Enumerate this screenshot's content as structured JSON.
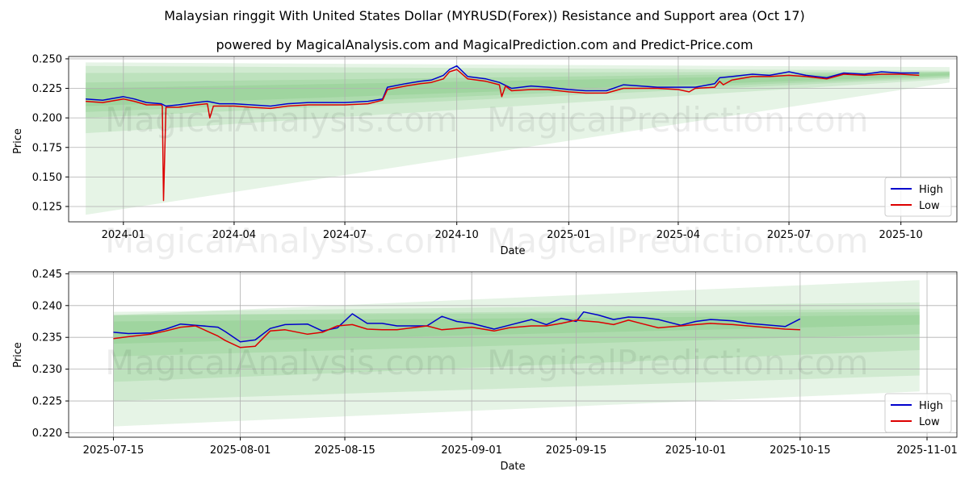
{
  "titles": {
    "main": "Malaysian ringgit With United States Dollar (MYRUSD(Forex)) Resistance and Support area (Oct 17)",
    "sub": "powered by MagicalAnalysis.com and MagicalPrediction.com and Predict-Price.com"
  },
  "watermarks": [
    "MagicalAnalysis.com",
    "MagicalPrediction.com"
  ],
  "colors": {
    "high": "#0000cc",
    "low": "#dd0000",
    "band": "#4caf50",
    "grid": "#b0b0b0"
  },
  "chart_data": [
    {
      "type": "line",
      "xlabel": "Date",
      "ylabel": "Price",
      "xlim": [
        "2023-11-17",
        "2025-11-16"
      ],
      "ylim": [
        0.112,
        0.252
      ],
      "xticks": [
        {
          "value": "2024-01-01",
          "label": "2024-01"
        },
        {
          "value": "2024-04-01",
          "label": "2024-04"
        },
        {
          "value": "2024-07-01",
          "label": "2024-07"
        },
        {
          "value": "2024-10-01",
          "label": "2024-10"
        },
        {
          "value": "2025-01-01",
          "label": "2025-01"
        },
        {
          "value": "2025-04-01",
          "label": "2025-04"
        },
        {
          "value": "2025-07-01",
          "label": "2025-07"
        },
        {
          "value": "2025-10-01",
          "label": "2025-10"
        }
      ],
      "yticks": [
        0.125,
        0.15,
        0.175,
        0.2,
        0.225,
        0.25
      ],
      "ytick_labels": [
        "0.125",
        "0.150",
        "0.175",
        "0.200",
        "0.225",
        "0.250"
      ],
      "grid": true,
      "legend_position": "bottom-right",
      "bands": [
        {
          "x": [
            "2023-12-01",
            "2025-11-10"
          ],
          "top": [
            0.247,
            0.243
          ],
          "bottom": [
            0.118,
            0.23
          ]
        },
        {
          "x": [
            "2023-12-01",
            "2025-11-10"
          ],
          "top": [
            0.244,
            0.24
          ],
          "bottom": [
            0.187,
            0.233
          ]
        },
        {
          "x": [
            "2023-12-01",
            "2025-11-10"
          ],
          "top": [
            0.238,
            0.239
          ],
          "bottom": [
            0.2,
            0.234
          ]
        },
        {
          "x": [
            "2023-12-01",
            "2025-11-10"
          ],
          "top": [
            0.23,
            0.239
          ],
          "bottom": [
            0.205,
            0.235
          ]
        },
        {
          "x": [
            "2023-12-01",
            "2025-11-10"
          ],
          "top": [
            0.225,
            0.238
          ],
          "bottom": [
            0.21,
            0.236
          ]
        }
      ],
      "series": [
        {
          "name": "High",
          "x": [
            "2023-12-01",
            "2023-12-15",
            "2024-01-01",
            "2024-01-10",
            "2024-01-20",
            "2024-02-01",
            "2024-02-05",
            "2024-02-15",
            "2024-03-01",
            "2024-03-10",
            "2024-03-20",
            "2024-04-01",
            "2024-04-15",
            "2024-05-01",
            "2024-05-15",
            "2024-06-01",
            "2024-06-15",
            "2024-07-01",
            "2024-07-20",
            "2024-08-01",
            "2024-08-05",
            "2024-08-20",
            "2024-09-01",
            "2024-09-10",
            "2024-09-20",
            "2024-09-25",
            "2024-10-01",
            "2024-10-10",
            "2024-10-25",
            "2024-11-05",
            "2024-11-15",
            "2024-12-01",
            "2024-12-15",
            "2025-01-01",
            "2025-01-15",
            "2025-02-01",
            "2025-02-15",
            "2025-03-01",
            "2025-03-15",
            "2025-04-01",
            "2025-04-15",
            "2025-05-01",
            "2025-05-05",
            "2025-05-15",
            "2025-06-01",
            "2025-06-15",
            "2025-07-01",
            "2025-07-15",
            "2025-08-01",
            "2025-08-15",
            "2025-09-01",
            "2025-09-15",
            "2025-10-01",
            "2025-10-16"
          ],
          "values": [
            0.216,
            0.215,
            0.218,
            0.216,
            0.213,
            0.212,
            0.21,
            0.211,
            0.213,
            0.214,
            0.212,
            0.212,
            0.211,
            0.21,
            0.212,
            0.213,
            0.213,
            0.213,
            0.214,
            0.216,
            0.226,
            0.229,
            0.231,
            0.232,
            0.236,
            0.241,
            0.244,
            0.235,
            0.233,
            0.23,
            0.225,
            0.227,
            0.226,
            0.224,
            0.223,
            0.223,
            0.228,
            0.227,
            0.226,
            0.226,
            0.226,
            0.229,
            0.234,
            0.235,
            0.237,
            0.236,
            0.239,
            0.236,
            0.234,
            0.238,
            0.237,
            0.239,
            0.238,
            0.238
          ]
        },
        {
          "name": "Low",
          "x": [
            "2023-12-01",
            "2023-12-15",
            "2024-01-01",
            "2024-01-10",
            "2024-01-20",
            "2024-02-01",
            "2024-02-02",
            "2024-02-03",
            "2024-02-05",
            "2024-02-15",
            "2024-03-01",
            "2024-03-10",
            "2024-03-12",
            "2024-03-15",
            "2024-03-20",
            "2024-04-01",
            "2024-04-15",
            "2024-05-01",
            "2024-05-15",
            "2024-06-01",
            "2024-06-15",
            "2024-07-01",
            "2024-07-20",
            "2024-08-01",
            "2024-08-05",
            "2024-08-20",
            "2024-09-01",
            "2024-09-10",
            "2024-09-20",
            "2024-09-25",
            "2024-10-01",
            "2024-10-10",
            "2024-10-25",
            "2024-11-05",
            "2024-11-07",
            "2024-11-10",
            "2024-11-15",
            "2024-12-01",
            "2024-12-15",
            "2025-01-01",
            "2025-01-15",
            "2025-02-01",
            "2025-02-15",
            "2025-03-01",
            "2025-03-15",
            "2025-04-01",
            "2025-04-10",
            "2025-04-15",
            "2025-05-01",
            "2025-05-05",
            "2025-05-08",
            "2025-05-15",
            "2025-06-01",
            "2025-06-15",
            "2025-07-01",
            "2025-07-15",
            "2025-08-01",
            "2025-08-15",
            "2025-09-01",
            "2025-09-15",
            "2025-10-01",
            "2025-10-16"
          ],
          "values": [
            0.214,
            0.213,
            0.216,
            0.214,
            0.211,
            0.211,
            0.21,
            0.13,
            0.209,
            0.209,
            0.211,
            0.212,
            0.2,
            0.21,
            0.21,
            0.21,
            0.209,
            0.208,
            0.21,
            0.211,
            0.211,
            0.211,
            0.212,
            0.215,
            0.224,
            0.227,
            0.229,
            0.23,
            0.233,
            0.239,
            0.241,
            0.233,
            0.231,
            0.228,
            0.218,
            0.227,
            0.223,
            0.224,
            0.224,
            0.222,
            0.221,
            0.221,
            0.225,
            0.225,
            0.225,
            0.224,
            0.222,
            0.225,
            0.226,
            0.231,
            0.228,
            0.232,
            0.235,
            0.235,
            0.236,
            0.235,
            0.233,
            0.237,
            0.236,
            0.237,
            0.237,
            0.236
          ]
        }
      ]
    },
    {
      "type": "line",
      "xlabel": "Date",
      "ylabel": "Price",
      "xlim": [
        "2025-07-09",
        "2025-11-05"
      ],
      "ylim": [
        0.2193,
        0.2453
      ],
      "xticks": [
        {
          "value": "2025-07-15",
          "label": "2025-07-15"
        },
        {
          "value": "2025-08-01",
          "label": "2025-08-01"
        },
        {
          "value": "2025-08-15",
          "label": "2025-08-15"
        },
        {
          "value": "2025-09-01",
          "label": "2025-09-01"
        },
        {
          "value": "2025-09-15",
          "label": "2025-09-15"
        },
        {
          "value": "2025-10-01",
          "label": "2025-10-01"
        },
        {
          "value": "2025-10-15",
          "label": "2025-10-15"
        },
        {
          "value": "2025-11-01",
          "label": "2025-11-01"
        }
      ],
      "yticks": [
        0.22,
        0.225,
        0.23,
        0.235,
        0.24,
        0.245
      ],
      "ytick_labels": [
        "0.220",
        "0.225",
        "0.230",
        "0.235",
        "0.240",
        "0.245"
      ],
      "grid": true,
      "legend_position": "bottom-right",
      "bands": [
        {
          "x": [
            "2025-07-15",
            "2025-10-31"
          ],
          "top": [
            0.2385,
            0.244
          ],
          "bottom": [
            0.221,
            0.2265
          ]
        },
        {
          "x": [
            "2025-07-15",
            "2025-10-31"
          ],
          "top": [
            0.239,
            0.2405
          ],
          "bottom": [
            0.225,
            0.229
          ]
        },
        {
          "x": [
            "2025-07-15",
            "2025-10-31"
          ],
          "top": [
            0.2385,
            0.2395
          ],
          "bottom": [
            0.228,
            0.233
          ]
        },
        {
          "x": [
            "2025-07-15",
            "2025-10-31"
          ],
          "top": [
            0.2385,
            0.239
          ],
          "bottom": [
            0.232,
            0.2355
          ]
        },
        {
          "x": [
            "2025-07-15",
            "2025-10-31"
          ],
          "top": [
            0.2375,
            0.2385
          ],
          "bottom": [
            0.234,
            0.237
          ]
        }
      ],
      "series": [
        {
          "name": "High",
          "x": [
            "2025-07-15",
            "2025-07-17",
            "2025-07-20",
            "2025-07-22",
            "2025-07-24",
            "2025-07-26",
            "2025-07-29",
            "2025-07-30",
            "2025-08-01",
            "2025-08-03",
            "2025-08-05",
            "2025-08-07",
            "2025-08-10",
            "2025-08-12",
            "2025-08-14",
            "2025-08-16",
            "2025-08-18",
            "2025-08-20",
            "2025-08-22",
            "2025-08-26",
            "2025-08-28",
            "2025-08-30",
            "2025-09-01",
            "2025-09-04",
            "2025-09-06",
            "2025-09-09",
            "2025-09-11",
            "2025-09-13",
            "2025-09-15",
            "2025-09-16",
            "2025-09-18",
            "2025-09-20",
            "2025-09-22",
            "2025-09-24",
            "2025-09-26",
            "2025-09-29",
            "2025-10-01",
            "2025-10-03",
            "2025-10-06",
            "2025-10-08",
            "2025-10-10",
            "2025-10-13",
            "2025-10-15"
          ],
          "values": [
            0.2358,
            0.2356,
            0.2357,
            0.2363,
            0.2371,
            0.2369,
            0.2366,
            0.2359,
            0.2343,
            0.2346,
            0.2364,
            0.237,
            0.2371,
            0.236,
            0.2365,
            0.2387,
            0.2372,
            0.2372,
            0.2368,
            0.2368,
            0.2383,
            0.2375,
            0.2372,
            0.2363,
            0.2369,
            0.2378,
            0.237,
            0.238,
            0.2375,
            0.239,
            0.2385,
            0.2378,
            0.2382,
            0.2381,
            0.2378,
            0.2369,
            0.2375,
            0.2378,
            0.2376,
            0.2372,
            0.237,
            0.2367,
            0.2379
          ]
        },
        {
          "name": "Low",
          "x": [
            "2025-07-15",
            "2025-07-17",
            "2025-07-20",
            "2025-07-22",
            "2025-07-24",
            "2025-07-26",
            "2025-07-29",
            "2025-07-30",
            "2025-08-01",
            "2025-08-03",
            "2025-08-05",
            "2025-08-07",
            "2025-08-10",
            "2025-08-12",
            "2025-08-14",
            "2025-08-16",
            "2025-08-18",
            "2025-08-20",
            "2025-08-22",
            "2025-08-26",
            "2025-08-28",
            "2025-08-30",
            "2025-09-01",
            "2025-09-04",
            "2025-09-06",
            "2025-09-09",
            "2025-09-11",
            "2025-09-13",
            "2025-09-15",
            "2025-09-16",
            "2025-09-18",
            "2025-09-20",
            "2025-09-22",
            "2025-09-24",
            "2025-09-26",
            "2025-09-29",
            "2025-10-01",
            "2025-10-03",
            "2025-10-06",
            "2025-10-08",
            "2025-10-10",
            "2025-10-13",
            "2025-10-15"
          ],
          "values": [
            0.2348,
            0.2351,
            0.2355,
            0.236,
            0.2366,
            0.2368,
            0.2352,
            0.2345,
            0.2334,
            0.2336,
            0.236,
            0.2362,
            0.2355,
            0.2358,
            0.2368,
            0.237,
            0.2363,
            0.2362,
            0.2362,
            0.2368,
            0.2362,
            0.2364,
            0.2366,
            0.236,
            0.2365,
            0.2368,
            0.2368,
            0.2372,
            0.2377,
            0.2376,
            0.2374,
            0.237,
            0.2377,
            0.2371,
            0.2365,
            0.2368,
            0.237,
            0.2372,
            0.237,
            0.2368,
            0.2366,
            0.2363,
            0.2362
          ]
        }
      ]
    }
  ]
}
